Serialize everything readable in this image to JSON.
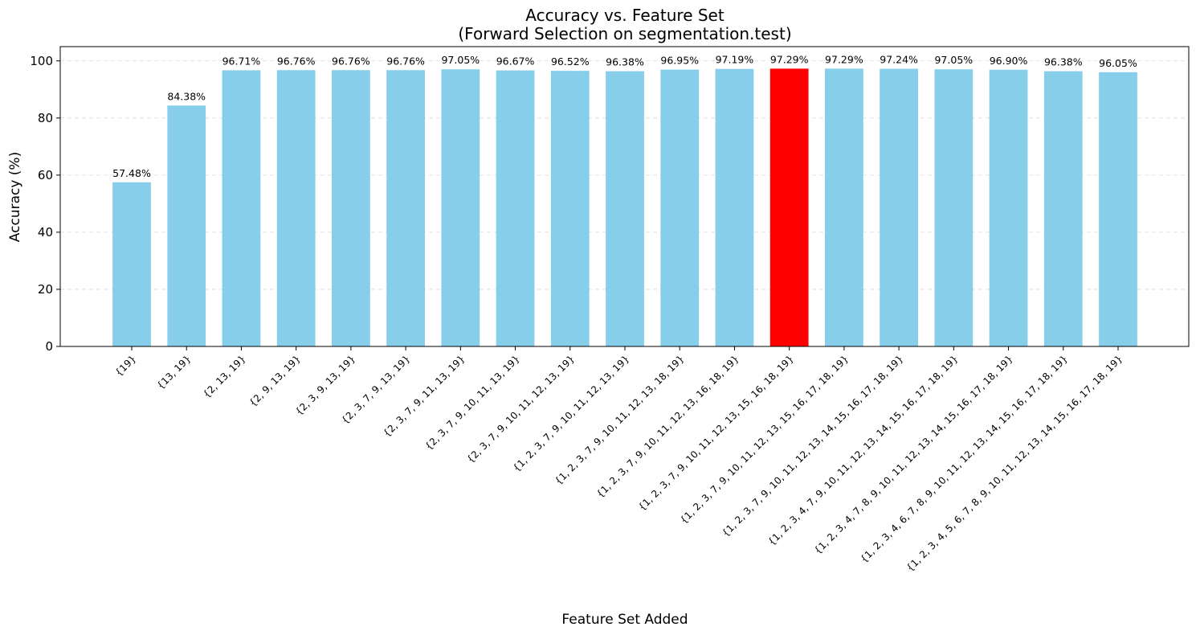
{
  "chart_data": {
    "type": "bar",
    "title": "Accuracy vs. Feature Set",
    "subtitle": "(Forward Selection on segmentation.test)",
    "xlabel": "Feature Set Added",
    "ylabel": "Accuracy (%)",
    "ylim": [
      0,
      105
    ],
    "yticks": [
      "0",
      "20",
      "40",
      "60",
      "80",
      "100"
    ],
    "grid": "y-dashed",
    "legend": "none",
    "bar_color": "#87CEEB",
    "highlight_color": "#FF0000",
    "highlight_index": 12,
    "categories": [
      "{19}",
      "{13, 19}",
      "{2, 13, 19}",
      "{2, 9, 13, 19}",
      "{2, 3, 9, 13, 19}",
      "{2, 3, 7, 9, 13, 19}",
      "{2, 3, 7, 9, 11, 13, 19}",
      "{2, 3, 7, 9, 10, 11, 13, 19}",
      "{2, 3, 7, 9, 10, 11, 12, 13, 19}",
      "{1, 2, 3, 7, 9, 10, 11, 12, 13, 19}",
      "{1, 2, 3, 7, 9, 10, 11, 12, 13, 18, 19}",
      "{1, 2, 3, 7, 9, 10, 11, 12, 13, 16, 18, 19}",
      "{1, 2, 3, 7, 9, 10, 11, 12, 13, 15, 16, 18, 19}",
      "{1, 2, 3, 7, 9, 10, 11, 12, 13, 15, 16, 17, 18, 19}",
      "{1, 2, 3, 7, 9, 10, 11, 12, 13, 14, 15, 16, 17, 18, 19}",
      "{1, 2, 3, 4, 7, 9, 10, 11, 12, 13, 14, 15, 16, 17, 18, 19}",
      "{1, 2, 3, 4, 7, 8, 9, 10, 11, 12, 13, 14, 15, 16, 17, 18, 19}",
      "{1, 2, 3, 4, 6, 7, 8, 9, 10, 11, 12, 13, 14, 15, 16, 17, 18, 19}",
      "{1, 2, 3, 4, 5, 6, 7, 8, 9, 10, 11, 12, 13, 14, 15, 16, 17, 18, 19}"
    ],
    "values": [
      57.48,
      84.38,
      96.71,
      96.76,
      96.76,
      96.76,
      97.05,
      96.67,
      96.52,
      96.38,
      96.95,
      97.19,
      97.29,
      97.29,
      97.24,
      97.05,
      96.9,
      96.38,
      96.05
    ],
    "value_labels": [
      "57.48%",
      "84.38%",
      "96.71%",
      "96.76%",
      "96.76%",
      "96.76%",
      "97.05%",
      "96.67%",
      "96.52%",
      "96.38%",
      "96.95%",
      "97.19%",
      "97.29%",
      "97.29%",
      "97.24%",
      "97.05%",
      "96.90%",
      "96.38%",
      "96.05%"
    ]
  }
}
